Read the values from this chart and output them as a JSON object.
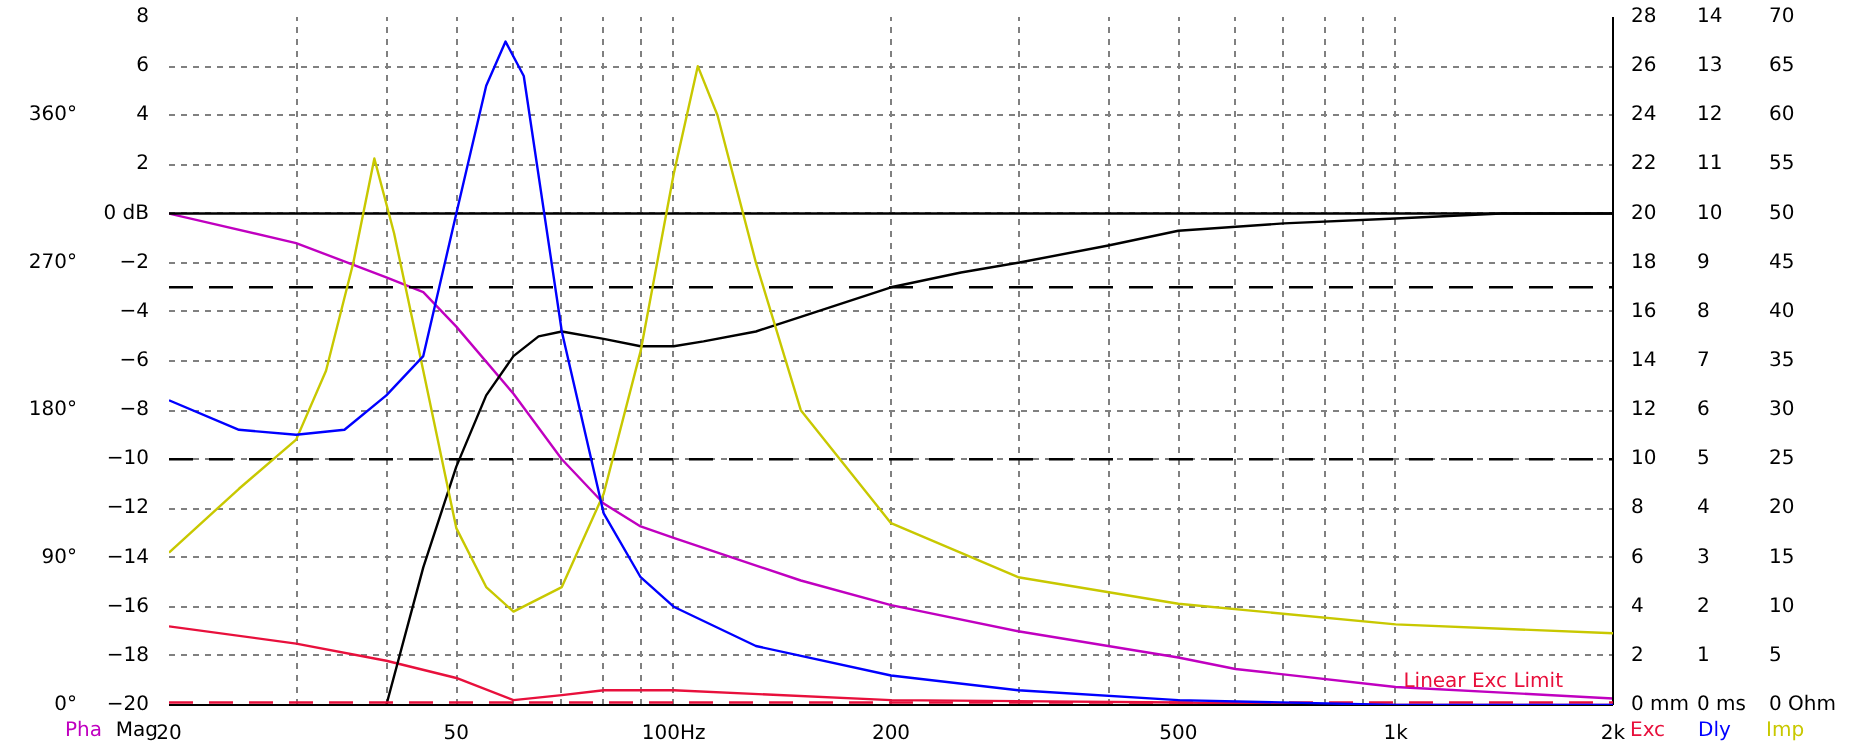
{
  "chart_data": [
    {
      "type": "line",
      "xlim": [
        20,
        2000
      ],
      "log": "x",
      "grid": true,
      "line_style": "solid",
      "marker": "none",
      "xticks": [
        20,
        {
          "value": 30,
          "label": null
        },
        {
          "value": 40,
          "label": null
        },
        50,
        {
          "value": 60,
          "label": null
        },
        {
          "value": 70,
          "label": null
        },
        {
          "value": 80,
          "label": null
        },
        {
          "value": 90,
          "label": null
        },
        {
          "value": 100,
          "label": "100Hz"
        },
        200,
        {
          "value": 300,
          "label": null
        },
        {
          "value": 400,
          "label": null
        },
        500,
        {
          "value": 600,
          "label": null
        },
        {
          "value": 700,
          "label": null
        },
        {
          "value": 800,
          "label": null
        },
        {
          "value": 900,
          "label": null
        },
        {
          "value": 1000,
          "label": "1k"
        },
        {
          "value": 2000,
          "label": "2k"
        }
      ],
      "ylabel": "Mag",
      "ylim": [
        -20,
        8
      ],
      "yticks": [
        -20,
        -18,
        -16,
        -14,
        -12,
        -10,
        -8,
        -6,
        -4,
        -2,
        {
          "value": 0,
          "label": "0 dB"
        },
        2,
        4,
        6,
        8
      ],
      "y2label": "Pha",
      "y2lim": [
        0,
        420
      ],
      "y2ticks": [
        {
          "value": 0,
          "label": "0°"
        },
        {
          "value": 90,
          "label": "90°"
        },
        {
          "value": 180,
          "label": "180°"
        },
        {
          "value": 270,
          "label": "270°"
        },
        {
          "value": 360,
          "label": "360°"
        }
      ],
      "y3label": "Exc",
      "y3lim": [
        0,
        28
      ],
      "y3ticks": [
        {
          "value": 0,
          "label": "0 mm"
        },
        2,
        4,
        6,
        8,
        10,
        12,
        14,
        16,
        18,
        20,
        22,
        24,
        26,
        28
      ],
      "ref_lines": [
        {
          "axis": "y",
          "value": 0,
          "color": "#000000",
          "line_style": "solid"
        },
        {
          "axis": "y",
          "value": -3,
          "color": "#000000",
          "line_style": "dashed"
        },
        {
          "axis": "y",
          "value": -10,
          "color": "#000000",
          "line_style": "dashed"
        },
        {
          "axis": "y3",
          "value": 0.1,
          "label": "Linear Exc Limit",
          "color": "#e8103c",
          "line_style": "dashed"
        }
      ],
      "series": [
        {
          "axis": "y2",
          "color": "#c000c0",
          "x": [
            20,
            30,
            40,
            45,
            50,
            60,
            70,
            80,
            90,
            100,
            150,
            200,
            300,
            500,
            600,
            1000,
            2000
          ],
          "values": [
            300,
            282,
            261,
            252,
            231,
            190,
            150,
            123,
            109,
            102,
            76,
            61,
            45,
            29,
            22,
            11,
            4
          ]
        },
        {
          "axis": "y3",
          "color": "#e8103c",
          "x": [
            20,
            30,
            40,
            50,
            60,
            70,
            80,
            100,
            200,
            500,
            1000,
            2000
          ],
          "values": [
            3.2,
            2.5,
            1.8,
            1.1,
            0.2,
            0.4,
            0.6,
            0.6,
            0.2,
            0.1,
            0,
            0
          ]
        },
        {
          "axis": "y",
          "color": "#000000",
          "x": [
            40,
            45,
            50,
            55,
            60,
            65,
            70,
            80,
            90,
            100,
            110,
            130,
            150,
            200,
            250,
            300,
            400,
            500,
            700,
            1000,
            1400,
            2000
          ],
          "values": [
            -20,
            -14.4,
            -10.3,
            -7.4,
            -5.8,
            -5.0,
            -4.8,
            -5.1,
            -5.4,
            -5.4,
            -5.2,
            -4.8,
            -4.2,
            -3.0,
            -2.4,
            -2.0,
            -1.3,
            -0.7,
            -0.4,
            -0.2,
            0,
            0
          ]
        }
      ]
    },
    {
      "type": "line",
      "xlim": [
        20,
        2000
      ],
      "log": "x",
      "grid": false,
      "line_style": "solid",
      "marker": "none",
      "tick_labels": "y",
      "ylabel": "Dly",
      "ylim": [
        0,
        14
      ],
      "yticks": [
        {
          "value": 0,
          "label": "0 ms"
        },
        1,
        2,
        3,
        4,
        5,
        6,
        7,
        8,
        9,
        10,
        11,
        12,
        13,
        14
      ],
      "y2label": "Imp",
      "y2lim": [
        0,
        70
      ],
      "y2ticks": [
        {
          "value": 0,
          "label": "0 Ohm"
        },
        5,
        10,
        15,
        20,
        25,
        30,
        35,
        40,
        45,
        50,
        55,
        60,
        65,
        70
      ],
      "series": [
        {
          "axis": "y2",
          "color": "#c8c800",
          "x": [
            20,
            25,
            30,
            33,
            36,
            38.5,
            41,
            45,
            50,
            55,
            60,
            70,
            80,
            90,
            100,
            108,
            115,
            130,
            150,
            200,
            300,
            500,
            1000,
            2000
          ],
          "values": [
            15.5,
            22,
            27,
            34,
            45,
            55.6,
            48,
            34,
            18,
            12,
            9.5,
            12,
            21.5,
            36,
            54,
            65,
            60,
            45,
            30,
            18.5,
            13,
            10.3,
            8.2,
            7.3
          ]
        },
        {
          "color": "#0000ff",
          "x": [
            20,
            25,
            30,
            35,
            40,
            45,
            50,
            55,
            58.5,
            62,
            70,
            80,
            90,
            100,
            130,
            200,
            300,
            500,
            1000,
            2000
          ],
          "values": [
            6.2,
            5.6,
            5.5,
            5.6,
            6.3,
            7.1,
            10,
            12.6,
            13.5,
            12.8,
            7.6,
            3.9,
            2.6,
            2.0,
            1.2,
            0.6,
            0.3,
            0.1,
            0,
            0
          ]
        }
      ]
    }
  ]
}
